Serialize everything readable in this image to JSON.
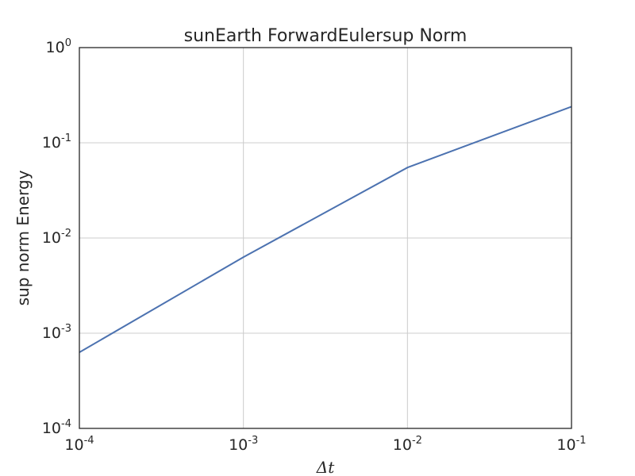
{
  "chart_data": {
    "type": "line",
    "title": "sunEarth ForwardEulersup Norm",
    "xlabel": "Δt",
    "ylabel": "sup norm Energy",
    "xscale": "log",
    "yscale": "log",
    "xlim": [
      0.0001,
      0.1
    ],
    "ylim": [
      0.0001,
      1
    ],
    "grid": true,
    "x_ticks": [
      {
        "base": "10",
        "exp": "-4",
        "value": 0.0001
      },
      {
        "base": "10",
        "exp": "-3",
        "value": 0.001
      },
      {
        "base": "10",
        "exp": "-2",
        "value": 0.01
      },
      {
        "base": "10",
        "exp": "-1",
        "value": 0.1
      }
    ],
    "y_ticks": [
      {
        "base": "10",
        "exp": "-4",
        "value": 0.0001
      },
      {
        "base": "10",
        "exp": "-3",
        "value": 0.001
      },
      {
        "base": "10",
        "exp": "-2",
        "value": 0.01
      },
      {
        "base": "10",
        "exp": "-1",
        "value": 0.1
      },
      {
        "base": "10",
        "exp": "0",
        "value": 1
      }
    ],
    "series": [
      {
        "color": "#4c72b0",
        "x": [
          0.0001,
          0.001,
          0.01,
          0.1
        ],
        "y": [
          0.00063,
          0.0063,
          0.055,
          0.24
        ]
      }
    ]
  }
}
